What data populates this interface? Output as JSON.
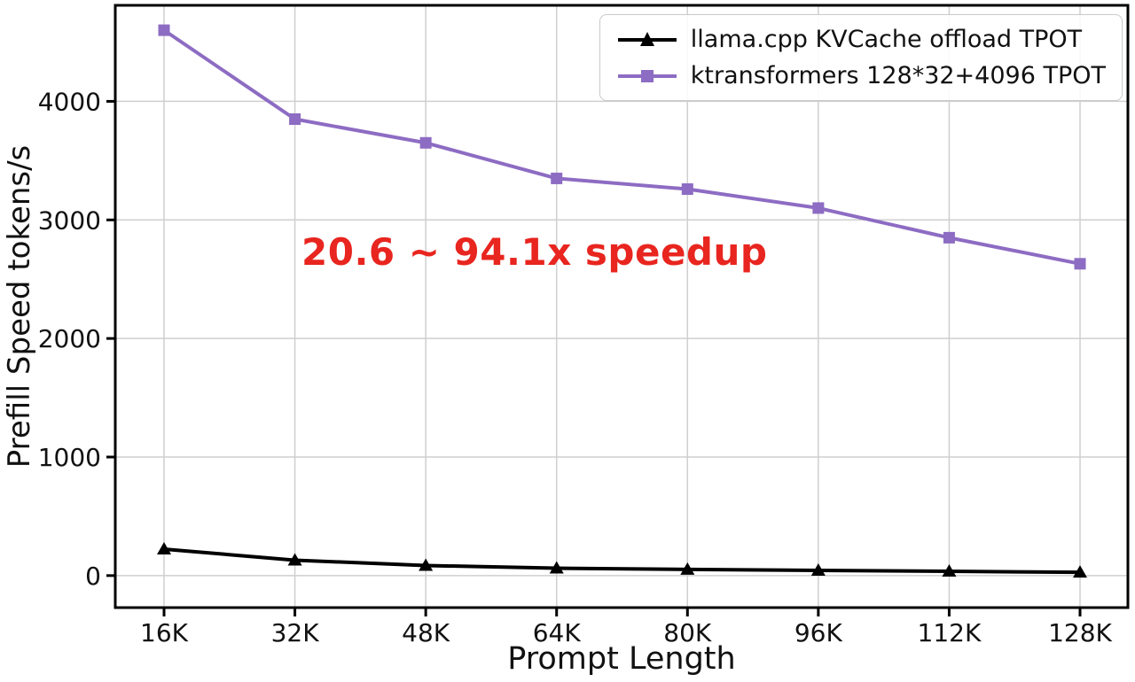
{
  "chart_data": {
    "type": "line",
    "title": "",
    "xlabel": "Prompt Length",
    "ylabel": "Prefill Speed tokens/s",
    "categories": [
      "16K",
      "32K",
      "48K",
      "64K",
      "80K",
      "96K",
      "112K",
      "128K"
    ],
    "series": [
      {
        "name": "llama.cpp KVCache offload TPOT",
        "color": "#000000",
        "marker": "triangle",
        "values": [
          223,
          130,
          85,
          62,
          52,
          44,
          36,
          28
        ]
      },
      {
        "name": "ktransformers 128*32+4096 TPOT",
        "color": "#8d6cc3",
        "marker": "square",
        "values": [
          4600,
          3850,
          3650,
          3350,
          3260,
          3100,
          2850,
          2630
        ]
      }
    ],
    "yticks": [
      0,
      1000,
      2000,
      3000,
      4000
    ],
    "ylim": [
      -270,
      4810
    ],
    "grid": true,
    "legend_position": "top-right",
    "annotation": {
      "text": "20.6 ~ 94.1x speedup",
      "color": "#e8251f"
    }
  },
  "colors": {
    "grid": "#cfcfcf",
    "axis": "#000000",
    "tick_label": "#111111",
    "background": "#ffffff",
    "legend_border": "#c9c9c9"
  }
}
